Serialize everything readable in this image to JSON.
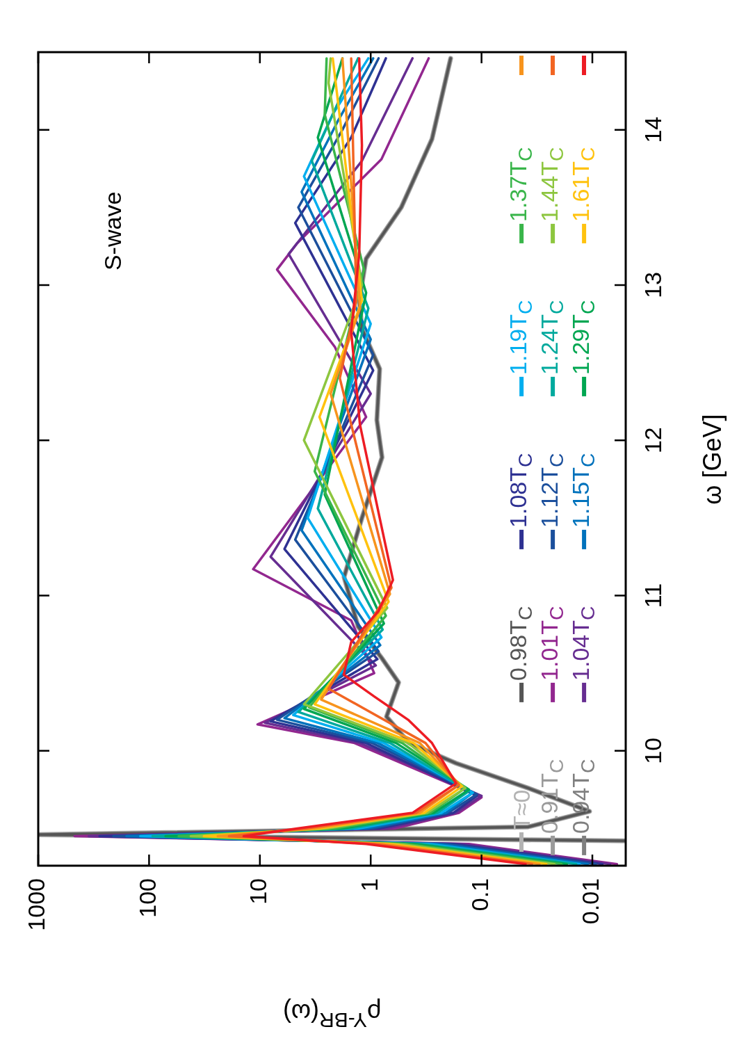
{
  "chart_data": {
    "type": "line",
    "xlabel": "ρ$^{Υ-BR}$(ω)",
    "ylabel": "ω [GeV]",
    "annotations": [
      "S-wave"
    ],
    "xlim": [
      1000,
      0.005
    ],
    "xticks": [
      1000,
      100,
      10,
      1,
      0.1,
      0.01
    ],
    "ylim": [
      9.26,
      14.5
    ],
    "yticks": [
      10,
      11,
      12,
      13,
      14
    ],
    "log": "x",
    "grid": false,
    "legend": "right",
    "series": [
      {
        "name": "T≈0",
        "color": "#b3b3b3",
        "values": [
          9.42,
          9.46,
          9.51,
          9.61,
          9.76,
          9.92,
          10.05,
          10.22,
          10.44,
          10.6,
          10.8,
          11.12,
          11.5,
          11.89,
          12.13,
          12.46,
          12.72,
          12.9,
          13.17,
          13.5,
          13.94,
          14.46
        ],
        "x": [
          0.005,
          1000,
          0.038,
          0.0106,
          0.038,
          0.17,
          0.45,
          0.72,
          0.56,
          0.8,
          1.3,
          1.74,
          1.2,
          0.79,
          0.88,
          0.83,
          1.2,
          1.27,
          1.1,
          0.53,
          0.28,
          0.19
        ]
      },
      {
        "name": "0.91T$_{C}$",
        "color": "#9a9a9a",
        "values": [
          9.42,
          9.46,
          9.51,
          9.61,
          9.76,
          9.92,
          10.05,
          10.22,
          10.44,
          10.6,
          10.8,
          11.12,
          11.5,
          11.89,
          12.13,
          12.46,
          12.72,
          12.9,
          13.17,
          13.5,
          13.94,
          14.46
        ],
        "x": [
          0.005,
          1000,
          0.038,
          0.0106,
          0.038,
          0.17,
          0.45,
          0.72,
          0.56,
          0.8,
          1.3,
          1.74,
          1.2,
          0.79,
          0.88,
          0.83,
          1.2,
          1.27,
          1.1,
          0.53,
          0.28,
          0.19
        ]
      },
      {
        "name": "0.94T$_{C}$",
        "color": "#808080",
        "values": [
          9.42,
          9.46,
          9.51,
          9.61,
          9.76,
          9.92,
          10.05,
          10.22,
          10.44,
          10.6,
          10.8,
          11.12,
          11.5,
          11.89,
          12.13,
          12.46,
          12.72,
          12.9,
          13.17,
          13.5,
          13.94,
          14.46
        ],
        "x": [
          0.005,
          1000,
          0.038,
          0.0106,
          0.038,
          0.17,
          0.45,
          0.72,
          0.56,
          0.8,
          1.3,
          1.74,
          1.2,
          0.79,
          0.88,
          0.83,
          1.2,
          1.27,
          1.1,
          0.53,
          0.28,
          0.19
        ]
      },
      {
        "name": "0.98T$_{C}$",
        "color": "#555555",
        "values": [
          9.42,
          9.46,
          9.51,
          9.61,
          9.76,
          9.92,
          10.05,
          10.22,
          10.44,
          10.6,
          10.8,
          11.12,
          11.5,
          11.89,
          12.13,
          12.46,
          12.72,
          12.9,
          13.17,
          13.5,
          13.94,
          14.46
        ],
        "x": [
          0.005,
          1000,
          0.038,
          0.0106,
          0.038,
          0.17,
          0.45,
          0.72,
          0.56,
          0.8,
          1.3,
          1.74,
          1.2,
          0.79,
          0.88,
          0.83,
          1.2,
          1.27,
          1.1,
          0.53,
          0.28,
          0.19
        ]
      },
      {
        "name": "1.01T$_{C}$",
        "color": "#92278f",
        "values": [
          9.27,
          9.4,
          9.45,
          9.5,
          9.6,
          9.7,
          10.05,
          10.17,
          10.5,
          10.84,
          11.17,
          12.15,
          12.6,
          13.1,
          13.27,
          13.81,
          14.46
        ],
        "x": [
          0.006,
          0.13,
          470,
          0.6,
          0.16,
          0.1,
          1.4,
          10.5,
          0.93,
          1.5,
          11.5,
          1.1,
          2.1,
          7,
          4.6,
          0.8,
          0.3
        ]
      },
      {
        "name": "1.04T$_{C}$",
        "color": "#662d91",
        "values": [
          9.27,
          9.4,
          9.45,
          9.5,
          9.6,
          9.71,
          10.05,
          10.18,
          10.55,
          11.25,
          12.3,
          13.2,
          13.8,
          14.46
        ],
        "x": [
          0.0069,
          0.15,
          350,
          0.7,
          0.17,
          0.1,
          1.25,
          9,
          0.9,
          8,
          1.0,
          5.5,
          1.2,
          0.42
        ]
      },
      {
        "name": "1.08T$_{C}$",
        "color": "#2e3192",
        "values": [
          9.27,
          9.4,
          9.45,
          9.5,
          9.6,
          9.71,
          10.05,
          10.19,
          10.59,
          11.3,
          12.45,
          13.4,
          13.95,
          14.46
        ],
        "x": [
          0.0081,
          0.18,
          280,
          0.83,
          0.18,
          0.11,
          1.1,
          8,
          0.87,
          6,
          0.95,
          4.8,
          1.5,
          0.73
        ]
      },
      {
        "name": "1.12T$_{C}$",
        "color": "#1b4f9c",
        "values": [
          9.27,
          9.4,
          9.45,
          9.5,
          9.6,
          9.72,
          10.05,
          10.2,
          10.64,
          11.36,
          12.55,
          13.5,
          14.0,
          14.46
        ],
        "x": [
          0.0093,
          0.21,
          210,
          0.96,
          0.2,
          0.11,
          0.97,
          7,
          0.85,
          4.8,
          0.95,
          4.5,
          1.8,
          0.85
        ]
      },
      {
        "name": "1.15T$_{C}$",
        "color": "#0072bc",
        "values": [
          9.27,
          9.4,
          9.45,
          9.5,
          9.6,
          9.73,
          10.05,
          10.21,
          10.68,
          11.42,
          12.65,
          13.6,
          14.05,
          14.46
        ],
        "x": [
          0.011,
          0.25,
          160,
          1.1,
          0.21,
          0.12,
          0.86,
          6,
          0.82,
          4.2,
          1.0,
          4.2,
          2.0,
          0.95
        ]
      },
      {
        "name": "1.19T$_{C}$",
        "color": "#00aeef",
        "values": [
          9.27,
          9.4,
          9.45,
          9.5,
          9.6,
          9.73,
          10.05,
          10.23,
          10.73,
          11.5,
          12.75,
          13.7,
          14.1,
          14.46
        ],
        "x": [
          0.013,
          0.3,
          120,
          1.3,
          0.23,
          0.12,
          0.76,
          5,
          0.8,
          3.7,
          1.0,
          4,
          2.2,
          1.05
        ]
      },
      {
        "name": "1.24T$_{C}$",
        "color": "#00a99d",
        "values": [
          9.27,
          9.4,
          9.45,
          9.5,
          9.6,
          9.74,
          10.05,
          10.25,
          10.78,
          11.56,
          12.85,
          13.8,
          14.46
        ],
        "x": [
          0.014,
          0.35,
          93,
          1.5,
          0.25,
          0.13,
          0.67,
          4.5,
          0.78,
          3.0,
          1.05,
          3.4,
          1.3
        ]
      },
      {
        "name": "1.29T$_{C}$",
        "color": "#00a651",
        "values": [
          9.27,
          9.4,
          9.45,
          9.5,
          9.6,
          9.75,
          10.05,
          10.27,
          10.82,
          11.65,
          12.95,
          13.95,
          14.46
        ],
        "x": [
          0.017,
          0.41,
          71,
          1.8,
          0.27,
          0.13,
          0.59,
          4,
          0.76,
          2.6,
          1.1,
          3.0,
          1.8
        ]
      },
      {
        "name": "1.37T$_{C}$",
        "color": "#39b54a",
        "values": [
          9.27,
          9.4,
          9.45,
          9.5,
          9.6,
          9.76,
          10.05,
          10.28,
          10.87,
          11.8,
          13.1,
          14.1,
          14.46
        ],
        "x": [
          0.019,
          0.48,
          54,
          2.1,
          0.29,
          0.14,
          0.52,
          3.6,
          0.73,
          3.2,
          1.15,
          2.6,
          2.5
        ]
      },
      {
        "name": "1.44T$_{C}$",
        "color": "#8dc63f",
        "values": [
          9.27,
          9.4,
          9.45,
          9.5,
          9.6,
          9.76,
          10.05,
          10.3,
          10.92,
          12.0,
          13.0,
          14.3,
          14.46
        ],
        "x": [
          0.022,
          0.56,
          42,
          2.5,
          0.31,
          0.14,
          0.46,
          4,
          0.71,
          4,
          1.2,
          2.4,
          2.3
        ]
      },
      {
        "name": "1.61T$_{C}$",
        "color": "#ffc20e",
        "values": [
          9.27,
          9.4,
          9.45,
          9.5,
          9.6,
          9.77,
          10.05,
          10.3,
          10.96,
          12.15,
          12.9,
          14.46
        ],
        "x": [
          0.026,
          0.68,
          32,
          2.9,
          0.33,
          0.15,
          0.41,
          3.2,
          0.69,
          2.9,
          1.2,
          2.2
        ]
      },
      {
        "color": "#f7941d",
        "values": [
          9.27,
          9.4,
          9.45,
          9.5,
          9.6,
          9.78,
          10.05,
          10.33,
          11.01,
          12.3,
          12.85,
          14.46
        ],
        "x": [
          0.03,
          0.79,
          24,
          3.3,
          0.36,
          0.16,
          0.36,
          2.8,
          0.67,
          2.3,
          1.25,
          1.8
        ]
      },
      {
        "color": "#f26522",
        "values": [
          9.27,
          9.4,
          9.45,
          9.5,
          9.6,
          9.78,
          10.05,
          10.4,
          11.05,
          12.4,
          12.9,
          14.46
        ],
        "x": [
          0.035,
          0.93,
          19,
          3.9,
          0.39,
          0.16,
          0.32,
          2.4,
          0.65,
          1.9,
          1.35,
          1.5
        ]
      },
      {
        "color": "#ed1c24",
        "values": [
          9.27,
          9.4,
          9.45,
          9.5,
          9.6,
          9.79,
          10.05,
          10.2,
          10.35,
          10.49,
          10.7,
          10.9,
          11.1,
          11.5,
          12.1,
          12.7,
          13.2,
          13.9,
          14.46
        ],
        "x": [
          0.04,
          1.1,
          14,
          4.6,
          0.42,
          0.17,
          0.28,
          0.46,
          0.93,
          1.75,
          1.5,
          0.85,
          0.63,
          0.83,
          1.25,
          1.5,
          1.27,
          1.2,
          1.27
        ]
      }
    ]
  }
}
